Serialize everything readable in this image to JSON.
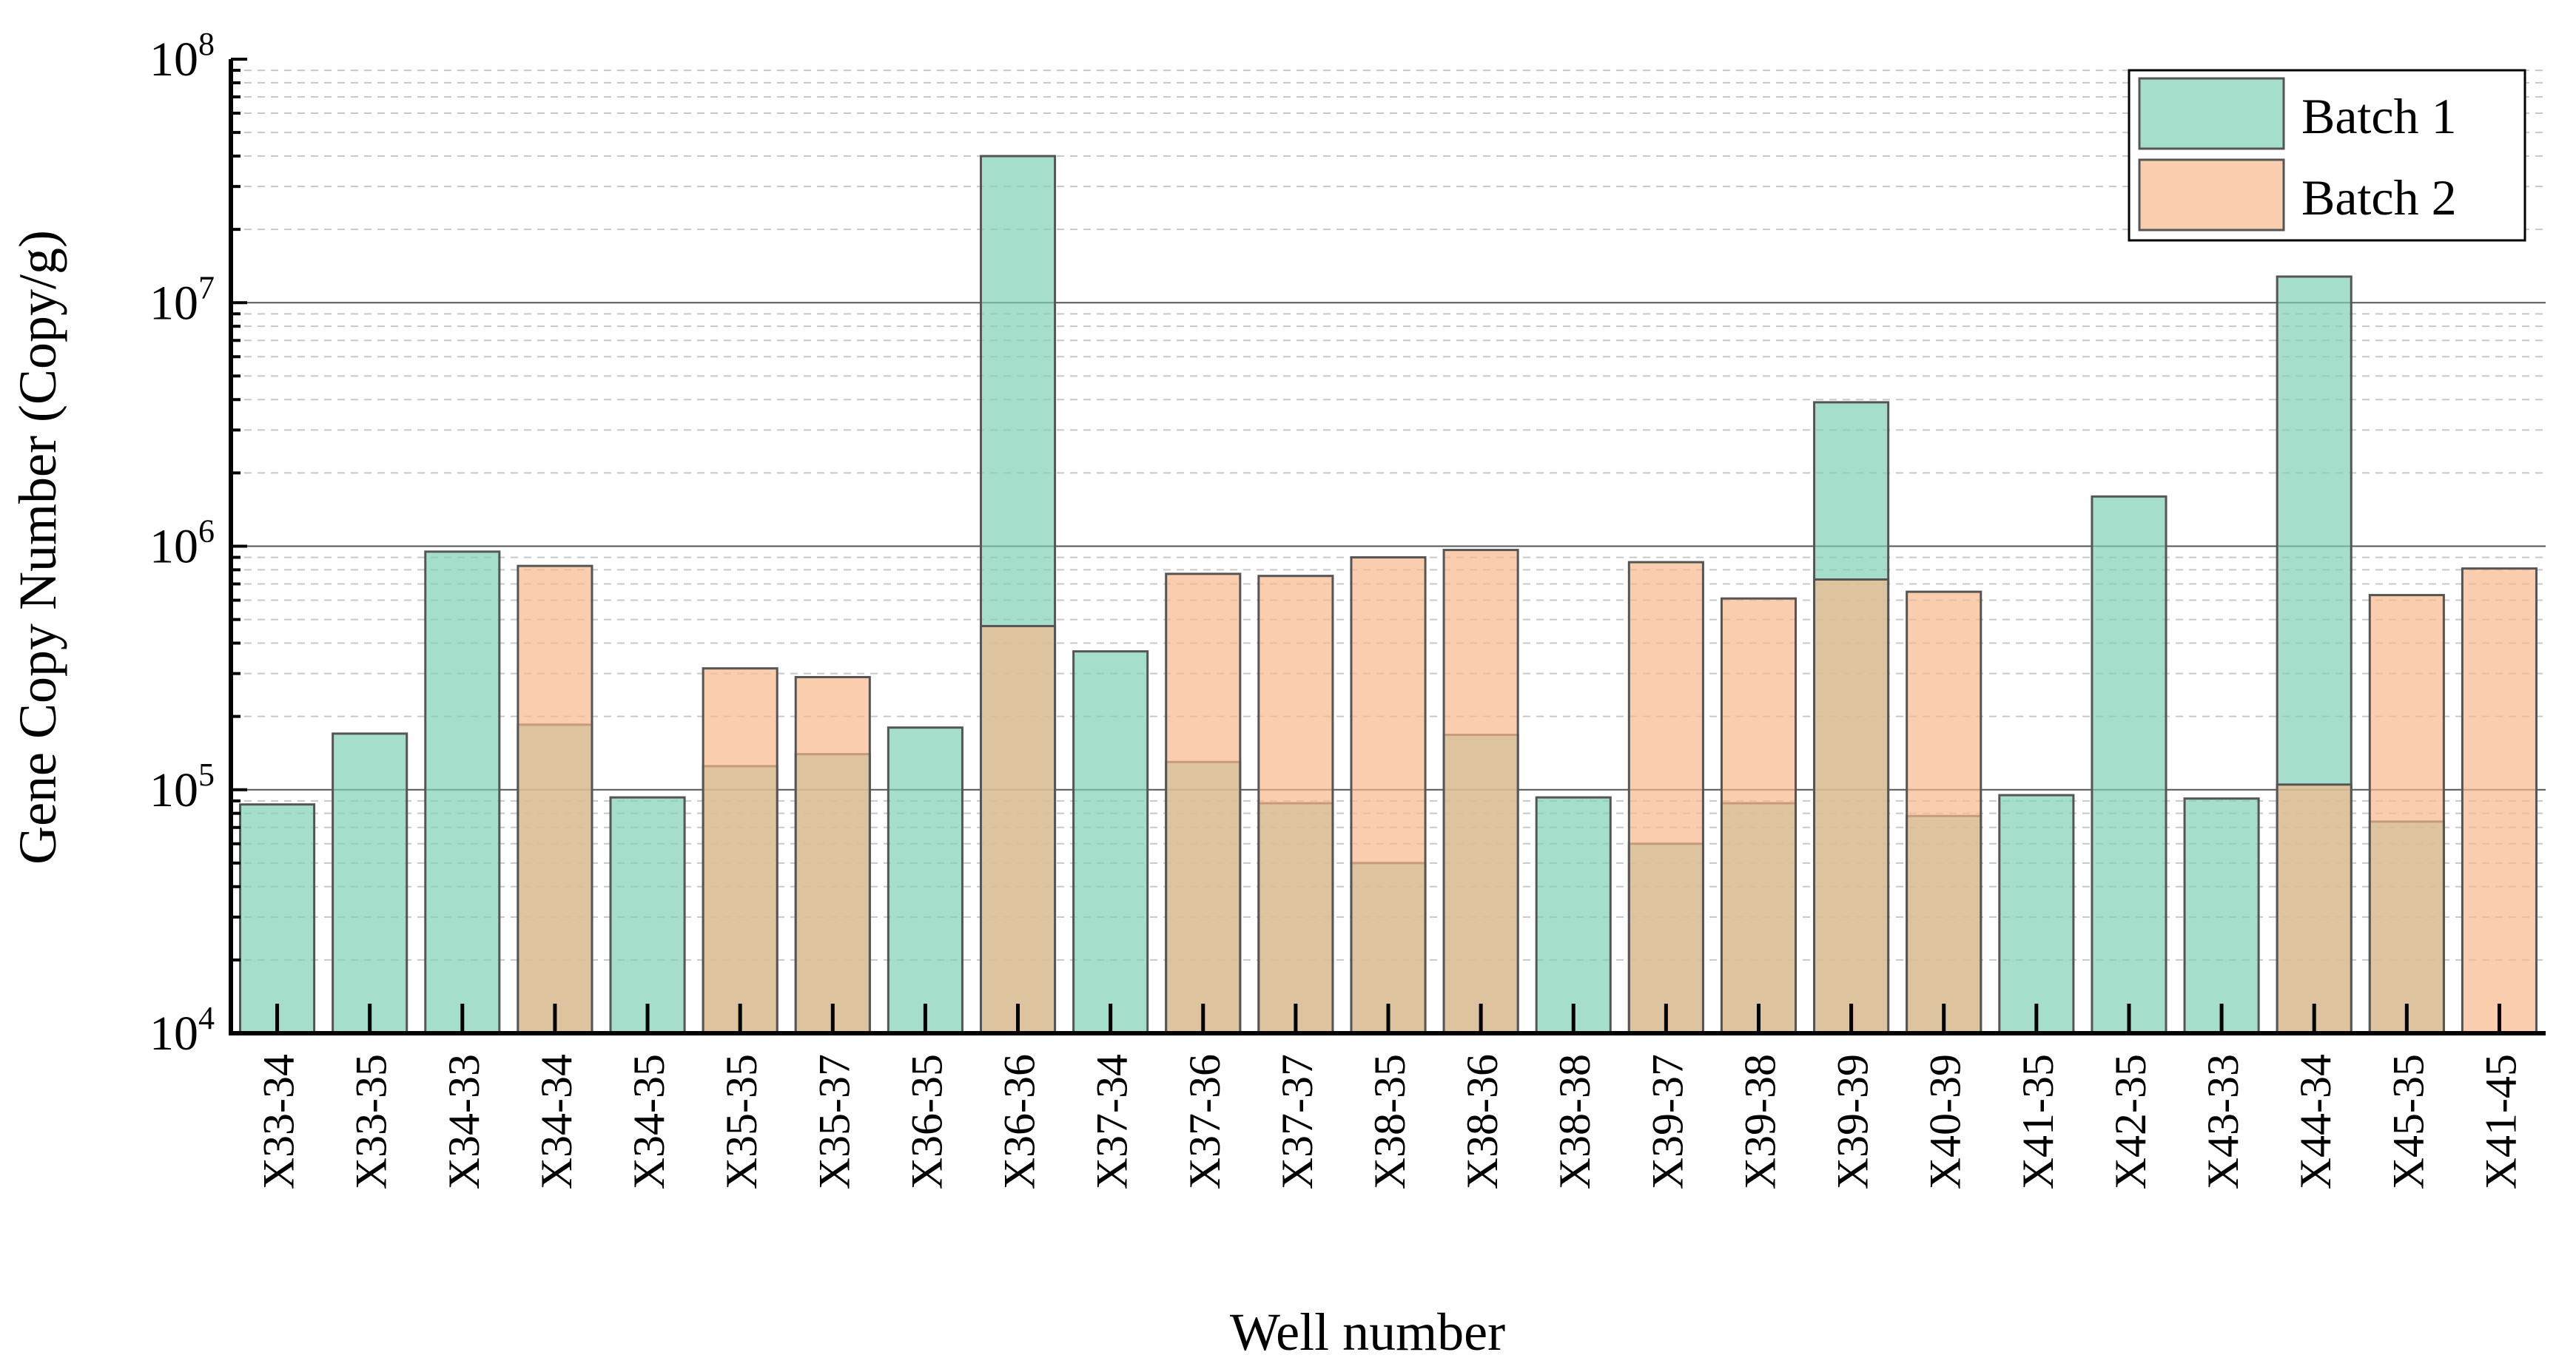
{
  "chart_data": {
    "type": "bar",
    "title": "",
    "xlabel": "Well number",
    "ylabel": "Gene Copy Number (Copy/g)",
    "yscale": "log",
    "ylim": [
      10000,
      100000000
    ],
    "yticks": [
      {
        "base": "10",
        "exp": "4"
      },
      {
        "base": "10",
        "exp": "5"
      },
      {
        "base": "10",
        "exp": "6"
      },
      {
        "base": "10",
        "exp": "7"
      },
      {
        "base": "10",
        "exp": "8"
      }
    ],
    "grid": true,
    "legend_position": "top-right",
    "categories": [
      "X33-34",
      "X33-35",
      "X34-33",
      "X34-34",
      "X34-35",
      "X35-35",
      "X35-37",
      "X36-35",
      "X36-36",
      "X37-34",
      "X37-36",
      "X37-37",
      "X38-35",
      "X38-36",
      "X38-38",
      "X39-37",
      "X39-38",
      "X39-39",
      "X40-39",
      "X41-35",
      "X42-35",
      "X43-33",
      "X44-34",
      "X45-35",
      "X41-45"
    ],
    "series": [
      {
        "name": "Batch 1",
        "color": "#7fd1b5",
        "values": [
          87000,
          170000,
          950000,
          185000,
          93000,
          125000,
          140000,
          180000,
          40000000,
          370000,
          130000,
          88000,
          50000,
          168000,
          93000,
          60000,
          88000,
          3900000,
          78000,
          95000,
          1600000,
          92000,
          12800000,
          74000,
          null
        ]
      },
      {
        "name": "Batch 2",
        "color": "#f7b88a",
        "values": [
          null,
          null,
          null,
          830000,
          null,
          315000,
          290000,
          null,
          470000,
          null,
          770000,
          755000,
          900000,
          965000,
          null,
          860000,
          610000,
          730000,
          650000,
          null,
          null,
          null,
          105000,
          630000,
          810000
        ]
      }
    ]
  }
}
